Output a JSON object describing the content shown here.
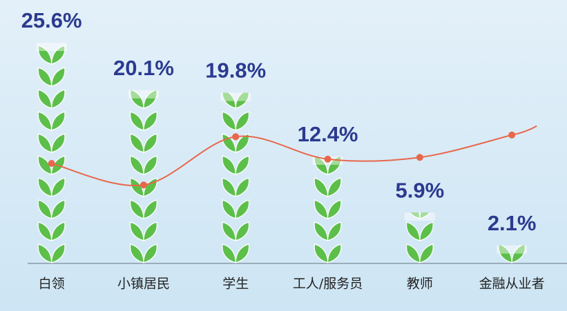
{
  "chart_data": {
    "type": "pictorial-bar",
    "categories": [
      "白领",
      "小镇居民",
      "学生",
      "工人/服务员",
      "教师",
      "金融从业者"
    ],
    "ylim": [
      0,
      30
    ],
    "series": [
      {
        "color": "#5cbf4a",
        "values": [
          25.6,
          20.1,
          19.8,
          12.4,
          5.9,
          2.1
        ],
        "value_labels": [
          "25.6%",
          "20.1%",
          "19.8%",
          "12.4%",
          "5.9%",
          "2.1%"
        ]
      },
      {
        "type": "line",
        "color": "#e8674a",
        "values": [
          11.6,
          9.1,
          14.7,
          12.1,
          12.3,
          14.9
        ]
      }
    ]
  }
}
